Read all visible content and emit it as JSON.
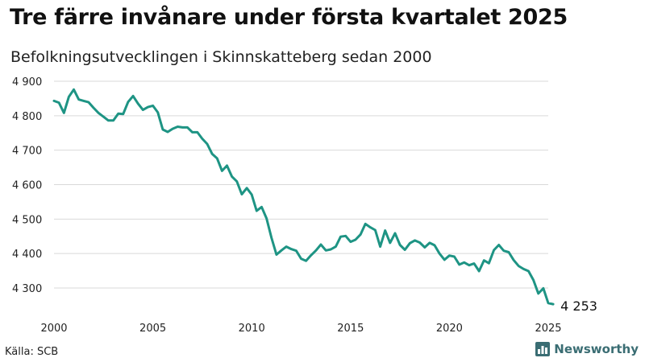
{
  "chart_data": {
    "type": "line",
    "title": "Tre färre invånare under första kvartalet 2025",
    "subtitle": "Befolkningsutvecklingen i Skinnskatteberg sedan 2000",
    "ylim": [
      4250,
      4900
    ],
    "yticks": [
      4300,
      4400,
      4500,
      4600,
      4700,
      4800,
      4900
    ],
    "ytick_labels": [
      "4 300",
      "4 400",
      "4 500",
      "4 600",
      "4 700",
      "4 800",
      "4 900"
    ],
    "xticks": [
      2000,
      2005,
      2010,
      2015,
      2020,
      2025
    ],
    "xtick_labels": [
      "2000",
      "2005",
      "2010",
      "2015",
      "2020",
      "2025"
    ],
    "grid": "horizontal",
    "line_color": "#1e9484",
    "end_label": "4 253",
    "series": [
      {
        "x": [
          2000.0,
          2000.25,
          2000.5,
          2000.75,
          2001.0,
          2001.25,
          2001.5,
          2001.75,
          2002.0,
          2002.25,
          2002.5,
          2002.75,
          2003.0,
          2003.25,
          2003.5,
          2003.75,
          2004.0,
          2004.25,
          2004.5,
          2004.75,
          2005.0,
          2005.25,
          2005.5,
          2005.75,
          2006.0,
          2006.25,
          2006.5,
          2006.75,
          2007.0,
          2007.25,
          2007.5,
          2007.75,
          2008.0,
          2008.25,
          2008.5,
          2008.75,
          2009.0,
          2009.25,
          2009.5,
          2009.75,
          2010.0,
          2010.25,
          2010.5,
          2010.75,
          2011.0,
          2011.25,
          2011.5,
          2011.75,
          2012.0,
          2012.25,
          2012.5,
          2012.75,
          2013.0,
          2013.25,
          2013.5,
          2013.75,
          2014.0,
          2014.25,
          2014.5,
          2014.75,
          2015.0,
          2015.25,
          2015.5,
          2015.75,
          2016.0,
          2016.25,
          2016.5,
          2016.75,
          2017.0,
          2017.25,
          2017.5,
          2017.75,
          2018.0,
          2018.25,
          2018.5,
          2018.75,
          2019.0,
          2019.25,
          2019.5,
          2019.75,
          2020.0,
          2020.25,
          2020.5,
          2020.75,
          2021.0,
          2021.25,
          2021.5,
          2021.75,
          2022.0,
          2022.25,
          2022.5,
          2022.75,
          2023.0,
          2023.25,
          2023.5,
          2023.75,
          2024.0,
          2024.25,
          2024.5,
          2024.75,
          2025.0,
          2025.25
        ],
        "values": [
          4843,
          4838,
          4808,
          4855,
          4876,
          4847,
          4843,
          4839,
          4823,
          4808,
          4797,
          4786,
          4786,
          4806,
          4805,
          4840,
          4857,
          4835,
          4817,
          4825,
          4829,
          4810,
          4760,
          4753,
          4762,
          4768,
          4766,
          4766,
          4752,
          4752,
          4733,
          4718,
          4689,
          4676,
          4640,
          4655,
          4623,
          4609,
          4572,
          4590,
          4571,
          4524,
          4535,
          4502,
          4446,
          4397,
          4409,
          4420,
          4413,
          4408,
          4385,
          4379,
          4395,
          4409,
          4426,
          4409,
          4412,
          4420,
          4449,
          4451,
          4434,
          4440,
          4455,
          4486,
          4476,
          4468,
          4420,
          4467,
          4431,
          4459,
          4425,
          4411,
          4430,
          4438,
          4432,
          4418,
          4431,
          4424,
          4400,
          4382,
          4394,
          4391,
          4368,
          4374,
          4366,
          4371,
          4349,
          4380,
          4372,
          4410,
          4425,
          4408,
          4404,
          4381,
          4364,
          4355,
          4349,
          4323,
          4284,
          4299,
          4256,
          4253
        ]
      }
    ]
  },
  "source_text": "Källa: SCB",
  "brand": {
    "name": "Newsworthy",
    "icon": "bar-chart-logo-icon"
  }
}
